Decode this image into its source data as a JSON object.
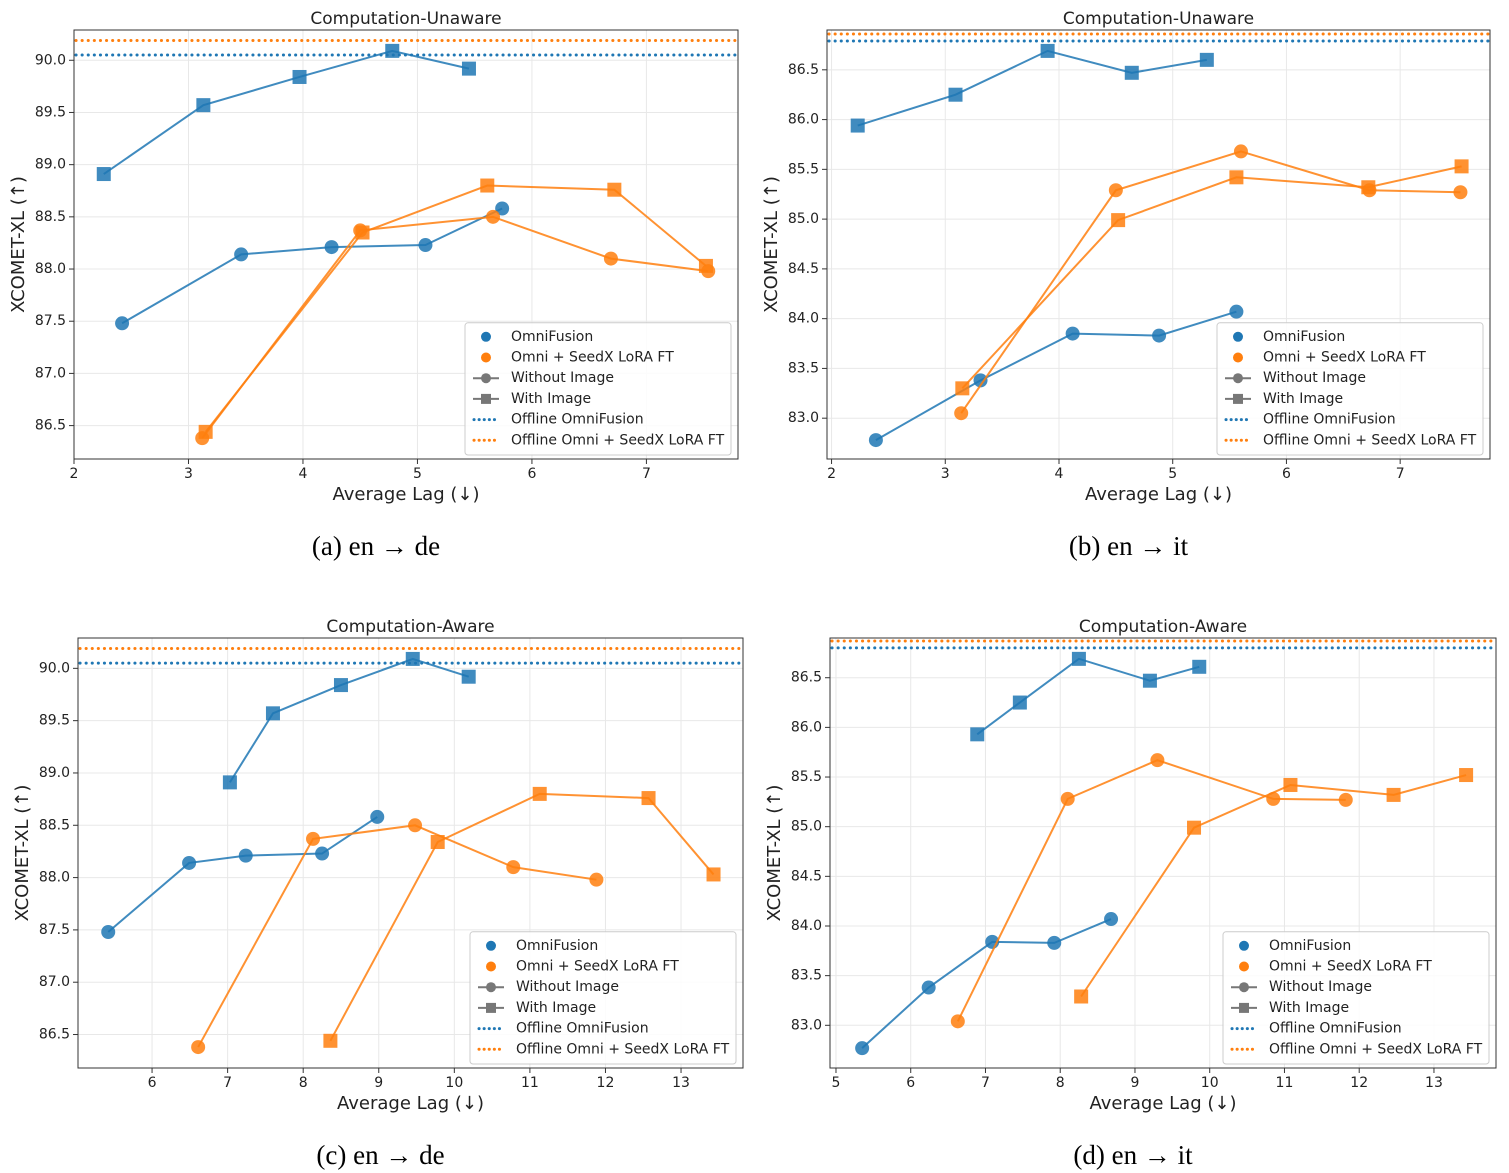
{
  "chart_data": [
    {
      "type": "line",
      "title": "Computation-Unaware",
      "caption": "(a) en → de",
      "xlabel": "Average Lag (↓)",
      "ylabel": "XCOMET-XL (↑)",
      "xlim": [
        2,
        7.8
      ],
      "ylim": [
        86.18,
        90.29
      ],
      "xticks": [
        2,
        3,
        4,
        5,
        6,
        7
      ],
      "yticks": [
        86.5,
        {
          "value": 87,
          "label": "87.0"
        },
        87.5,
        {
          "value": 88,
          "label": "88.0"
        },
        88.5,
        {
          "value": 89,
          "label": "89.0"
        },
        89.5,
        {
          "value": 90,
          "label": "90.0"
        }
      ],
      "grid": true,
      "legend_corner": "lower right",
      "conditions": [
        {
          "name": "Without Image",
          "marker": "circle"
        },
        {
          "name": "With Image",
          "marker": "square"
        }
      ],
      "models": [
        {
          "name": "OmniFusion",
          "color": "#1f77b4",
          "offline_label": "Offline OmniFusion",
          "offline_value": 90.05,
          "series": [
            {
              "x": [
                2.42,
                3.46,
                4.25,
                5.07,
                5.74
              ],
              "values": [
                87.48,
                88.14,
                88.21,
                88.23,
                88.58
              ]
            },
            {
              "x": [
                2.26,
                3.13,
                3.97,
                4.78,
                5.45
              ],
              "values": [
                88.91,
                89.57,
                89.84,
                90.09,
                89.92
              ]
            }
          ]
        },
        {
          "name": "Omni + SeedX LoRA FT",
          "color": "#ff7f0e",
          "offline_label": "Offline Omni + SeedX LoRA FT",
          "offline_value": 90.19,
          "series": [
            {
              "x": [
                3.12,
                4.5,
                5.66,
                6.69,
                7.54
              ],
              "values": [
                86.38,
                88.37,
                88.5,
                88.1,
                87.98
              ]
            },
            {
              "x": [
                3.15,
                4.52,
                5.61,
                6.72,
                7.52
              ],
              "values": [
                86.44,
                88.35,
                88.8,
                88.76,
                88.03
              ]
            }
          ]
        }
      ]
    },
    {
      "type": "line",
      "title": "Computation-Unaware",
      "caption": "(b) en → it",
      "xlabel": "Average Lag (↓)",
      "ylabel": "XCOMET-XL (↑)",
      "xlim": [
        1.96,
        7.79
      ],
      "ylim": [
        82.59,
        86.9
      ],
      "xticks": [
        2,
        3,
        4,
        5,
        6,
        7
      ],
      "yticks": [
        {
          "value": 83,
          "label": "83.0"
        },
        83.5,
        {
          "value": 84,
          "label": "84.0"
        },
        84.5,
        {
          "value": 85,
          "label": "85.0"
        },
        85.5,
        {
          "value": 86,
          "label": "86.0"
        },
        86.5
      ],
      "grid": true,
      "legend_corner": "lower right",
      "conditions": [
        {
          "name": "Without Image",
          "marker": "circle"
        },
        {
          "name": "With Image",
          "marker": "square"
        }
      ],
      "models": [
        {
          "name": "OmniFusion",
          "color": "#1f77b4",
          "offline_label": "Offline OmniFusion",
          "offline_value": 86.79,
          "series": [
            {
              "x": [
                2.39,
                3.31,
                4.12,
                4.88,
                5.56
              ],
              "values": [
                82.78,
                83.38,
                83.85,
                83.83,
                84.07
              ]
            },
            {
              "x": [
                2.23,
                3.09,
                3.9,
                4.64,
                5.3
              ],
              "values": [
                85.94,
                86.25,
                86.69,
                86.47,
                86.6
              ]
            }
          ]
        },
        {
          "name": "Omni + SeedX LoRA FT",
          "color": "#ff7f0e",
          "offline_label": "Offline Omni + SeedX LoRA FT",
          "offline_value": 86.86,
          "series": [
            {
              "x": [
                3.14,
                4.5,
                5.6,
                6.73,
                7.53
              ],
              "values": [
                83.05,
                85.29,
                85.68,
                85.29,
                85.27
              ]
            },
            {
              "x": [
                3.15,
                4.52,
                5.56,
                6.72,
                7.54
              ],
              "values": [
                83.3,
                84.99,
                85.42,
                85.32,
                85.53
              ]
            }
          ]
        }
      ]
    },
    {
      "type": "line",
      "title": "Computation-Aware",
      "caption": "(c) en → de",
      "xlabel": "Average Lag (↓)",
      "ylabel": "XCOMET-XL (↑)",
      "xlim": [
        5.02,
        13.82
      ],
      "ylim": [
        86.18,
        90.29
      ],
      "xticks": [
        6,
        7,
        8,
        9,
        10,
        11,
        12,
        13
      ],
      "yticks": [
        86.5,
        {
          "value": 87,
          "label": "87.0"
        },
        87.5,
        {
          "value": 88,
          "label": "88.0"
        },
        88.5,
        {
          "value": 89,
          "label": "89.0"
        },
        89.5,
        {
          "value": 90,
          "label": "90.0"
        }
      ],
      "grid": true,
      "legend_corner": "lower right",
      "conditions": [
        {
          "name": "Without Image",
          "marker": "circle"
        },
        {
          "name": "With Image",
          "marker": "square"
        }
      ],
      "models": [
        {
          "name": "OmniFusion",
          "color": "#1f77b4",
          "offline_label": "Offline OmniFusion",
          "offline_value": 90.05,
          "series": [
            {
              "x": [
                5.42,
                6.49,
                7.24,
                8.25,
                8.98
              ],
              "values": [
                87.48,
                88.14,
                88.21,
                88.23,
                88.58
              ]
            },
            {
              "x": [
                7.03,
                7.6,
                8.5,
                9.45,
                10.19
              ],
              "values": [
                88.91,
                89.57,
                89.84,
                90.09,
                89.92
              ]
            }
          ]
        },
        {
          "name": "Omni + SeedX LoRA FT",
          "color": "#ff7f0e",
          "offline_label": "Offline Omni + SeedX LoRA FT",
          "offline_value": 90.19,
          "series": [
            {
              "x": [
                6.61,
                8.13,
                9.48,
                10.78,
                11.88
              ],
              "values": [
                86.38,
                88.37,
                88.5,
                88.1,
                87.98
              ]
            },
            {
              "x": [
                8.36,
                9.78,
                11.13,
                12.57,
                13.43
              ],
              "values": [
                86.44,
                88.34,
                88.8,
                88.76,
                88.03
              ]
            }
          ]
        }
      ]
    },
    {
      "type": "line",
      "title": "Computation-Aware",
      "caption": "(d) en → it",
      "xlabel": "Average Lag (↓)",
      "ylabel": "XCOMET-XL (↑)",
      "xlim": [
        4.92,
        13.83
      ],
      "ylim": [
        82.57,
        86.9
      ],
      "xticks": [
        5,
        6,
        7,
        8,
        9,
        10,
        11,
        12,
        13
      ],
      "yticks": [
        {
          "value": 83,
          "label": "83.0"
        },
        83.5,
        {
          "value": 84,
          "label": "84.0"
        },
        84.5,
        {
          "value": 85,
          "label": "85.0"
        },
        85.5,
        {
          "value": 86,
          "label": "86.0"
        },
        86.5
      ],
      "grid": true,
      "legend_corner": "lower right",
      "conditions": [
        {
          "name": "Without Image",
          "marker": "circle"
        },
        {
          "name": "With Image",
          "marker": "square"
        }
      ],
      "models": [
        {
          "name": "OmniFusion",
          "color": "#1f77b4",
          "offline_label": "Offline OmniFusion",
          "offline_value": 86.8,
          "series": [
            {
              "x": [
                5.35,
                6.24,
                7.09,
                7.92,
                8.68
              ],
              "values": [
                82.77,
                83.38,
                83.84,
                83.83,
                84.07
              ]
            },
            {
              "x": [
                6.89,
                7.46,
                8.25,
                9.2,
                9.86
              ],
              "values": [
                85.93,
                86.25,
                86.69,
                86.47,
                86.61
              ]
            }
          ]
        },
        {
          "name": "Omni + SeedX LoRA FT",
          "color": "#ff7f0e",
          "offline_label": "Offline Omni + SeedX LoRA FT",
          "offline_value": 86.87,
          "series": [
            {
              "x": [
                6.63,
                8.1,
                9.3,
                10.85,
                11.82
              ],
              "values": [
                83.04,
                85.28,
                85.67,
                85.28,
                85.27
              ]
            },
            {
              "x": [
                8.28,
                9.79,
                11.08,
                12.46,
                13.43
              ],
              "values": [
                83.29,
                84.99,
                85.42,
                85.32,
                85.52
              ]
            }
          ]
        }
      ]
    }
  ]
}
